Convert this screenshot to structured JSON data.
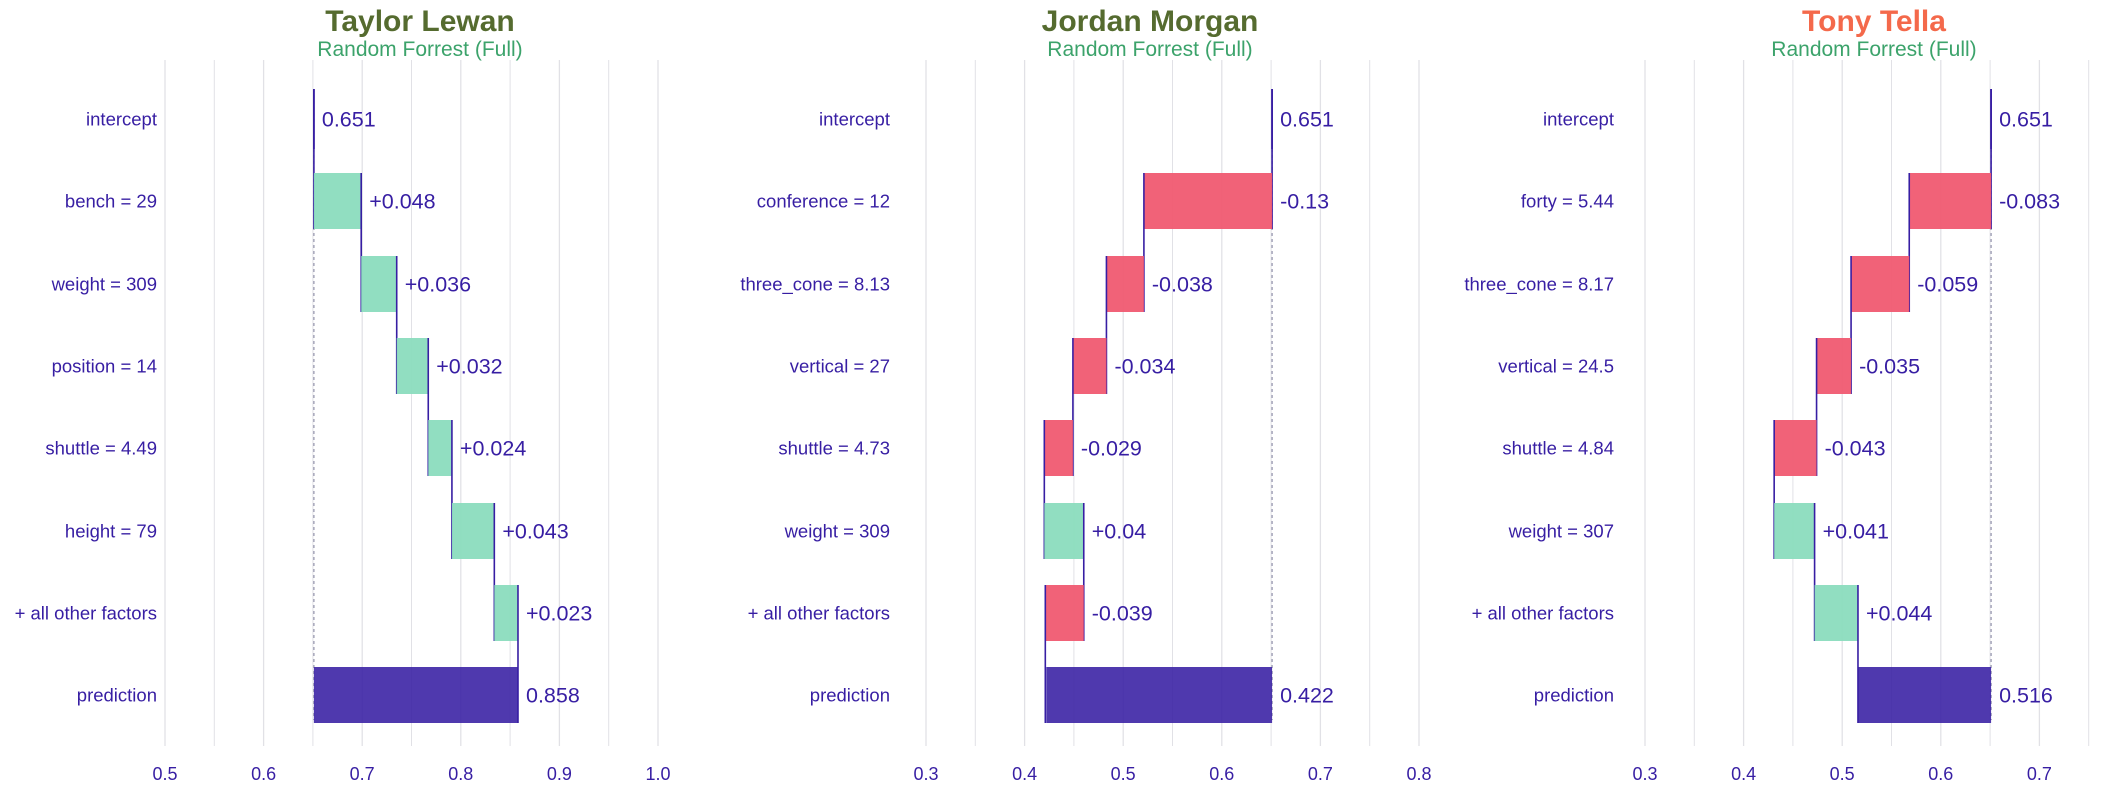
{
  "colors": {
    "label_text": "#371EA3",
    "grid": "#e1e1e6",
    "positive": "#8bdcbe",
    "negative": "#f05a71",
    "prediction": "#371EA3",
    "connector": "#371EA3",
    "subtitle": "#3ca36b"
  },
  "chart_data": [
    {
      "type": "bar",
      "title": "Taylor Lewan",
      "title_color": "#556b2f",
      "subtitle": "Random Forrest (Full)",
      "xlim": [
        0.5,
        1.0
      ],
      "ticks": [
        "0.5",
        "0.6",
        "0.7",
        "0.8",
        "0.9",
        "1.0"
      ],
      "rows": [
        {
          "label": "intercept",
          "start": 0.651,
          "end": 0.651,
          "text": "0.651",
          "kind": "intercept"
        },
        {
          "label": "bench = 29",
          "start": 0.651,
          "end": 0.699,
          "text": "+0.048",
          "kind": "pos"
        },
        {
          "label": "weight = 309",
          "start": 0.699,
          "end": 0.735,
          "text": "+0.036",
          "kind": "pos"
        },
        {
          "label": "position = 14",
          "start": 0.735,
          "end": 0.767,
          "text": "+0.032",
          "kind": "pos"
        },
        {
          "label": "shuttle = 4.49",
          "start": 0.767,
          "end": 0.791,
          "text": "+0.024",
          "kind": "pos"
        },
        {
          "label": "height = 79",
          "start": 0.791,
          "end": 0.834,
          "text": "+0.043",
          "kind": "pos"
        },
        {
          "label": "+ all other factors",
          "start": 0.834,
          "end": 0.858,
          "text": "+0.023",
          "kind": "pos"
        },
        {
          "label": "prediction",
          "start": 0.651,
          "end": 0.858,
          "text": "0.858",
          "kind": "prediction"
        }
      ]
    },
    {
      "type": "bar",
      "title": "Jordan Morgan",
      "title_color": "#556b2f",
      "subtitle": "Random Forrest (Full)",
      "xlim": [
        0.3,
        0.8
      ],
      "ticks": [
        "0.3",
        "0.4",
        "0.5",
        "0.6",
        "0.7",
        "0.8"
      ],
      "rows": [
        {
          "label": "intercept",
          "start": 0.651,
          "end": 0.651,
          "text": "0.651",
          "kind": "intercept"
        },
        {
          "label": "conference = 12",
          "start": 0.651,
          "end": 0.521,
          "text": "-0.13",
          "kind": "neg"
        },
        {
          "label": "three_cone = 8.13",
          "start": 0.521,
          "end": 0.483,
          "text": "-0.038",
          "kind": "neg"
        },
        {
          "label": "vertical = 27",
          "start": 0.483,
          "end": 0.449,
          "text": "-0.034",
          "kind": "neg"
        },
        {
          "label": "shuttle = 4.73",
          "start": 0.449,
          "end": 0.42,
          "text": "-0.029",
          "kind": "neg"
        },
        {
          "label": "weight = 309",
          "start": 0.42,
          "end": 0.46,
          "text": "+0.04",
          "kind": "pos"
        },
        {
          "label": "+ all other factors",
          "start": 0.46,
          "end": 0.421,
          "text": "-0.039",
          "kind": "neg"
        },
        {
          "label": "prediction",
          "start": 0.651,
          "end": 0.422,
          "text": "0.422",
          "kind": "prediction"
        }
      ]
    },
    {
      "type": "bar",
      "title": "Tony Tella",
      "title_color": "#f4694b",
      "subtitle": "Random Forrest (Full)",
      "xlim": [
        0.3,
        0.8
      ],
      "ticks": [
        "0.3",
        "0.4",
        "0.5",
        "0.6",
        "0.7",
        "0.8"
      ],
      "rows": [
        {
          "label": "intercept",
          "start": 0.651,
          "end": 0.651,
          "text": "0.651",
          "kind": "intercept"
        },
        {
          "label": "forty = 5.44",
          "start": 0.651,
          "end": 0.568,
          "text": "-0.083",
          "kind": "neg"
        },
        {
          "label": "three_cone = 8.17",
          "start": 0.568,
          "end": 0.509,
          "text": "-0.059",
          "kind": "neg"
        },
        {
          "label": "vertical = 24.5",
          "start": 0.509,
          "end": 0.474,
          "text": "-0.035",
          "kind": "neg"
        },
        {
          "label": "shuttle = 4.84",
          "start": 0.474,
          "end": 0.431,
          "text": "-0.043",
          "kind": "neg"
        },
        {
          "label": "weight = 307",
          "start": 0.431,
          "end": 0.472,
          "text": "+0.041",
          "kind": "pos"
        },
        {
          "label": "+ all other factors",
          "start": 0.472,
          "end": 0.516,
          "text": "+0.044",
          "kind": "pos"
        },
        {
          "label": "prediction",
          "start": 0.651,
          "end": 0.516,
          "text": "0.516",
          "kind": "prediction"
        }
      ]
    }
  ]
}
